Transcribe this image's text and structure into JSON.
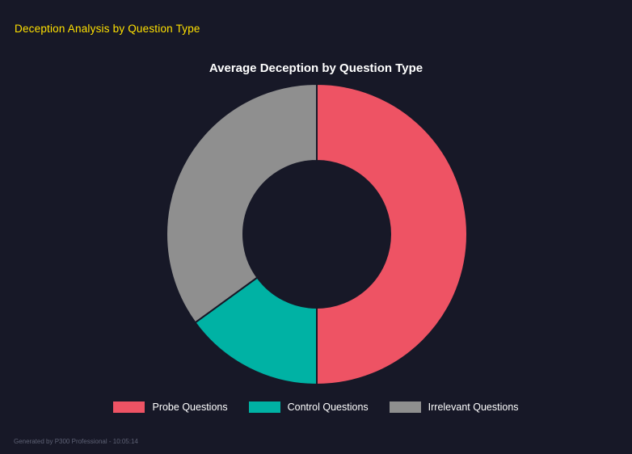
{
  "page": {
    "header": "Deception Analysis by Question Type",
    "footer": "Generated by P300 Professional - 10:05:14"
  },
  "chart_data": {
    "type": "pie",
    "variant": "donut",
    "title": "Average Deception by Question Type",
    "categories": [
      "Probe Questions",
      "Control Questions",
      "Irrelevant Questions"
    ],
    "values": [
      50,
      15,
      35
    ],
    "unit": "percent_of_circle",
    "colors": [
      "#ee5364",
      "#00b2a4",
      "#8f8f8f"
    ],
    "background": "#171827",
    "legend_position": "bottom",
    "start_angle_deg": 0,
    "clockwise": true,
    "inner_radius_ratio": 0.49
  },
  "theme": {
    "background": "#171827",
    "header_text": "#ffe100",
    "title_text": "#ffffff",
    "legend_text": "#ffffff",
    "footer_text": "#5e6275"
  }
}
